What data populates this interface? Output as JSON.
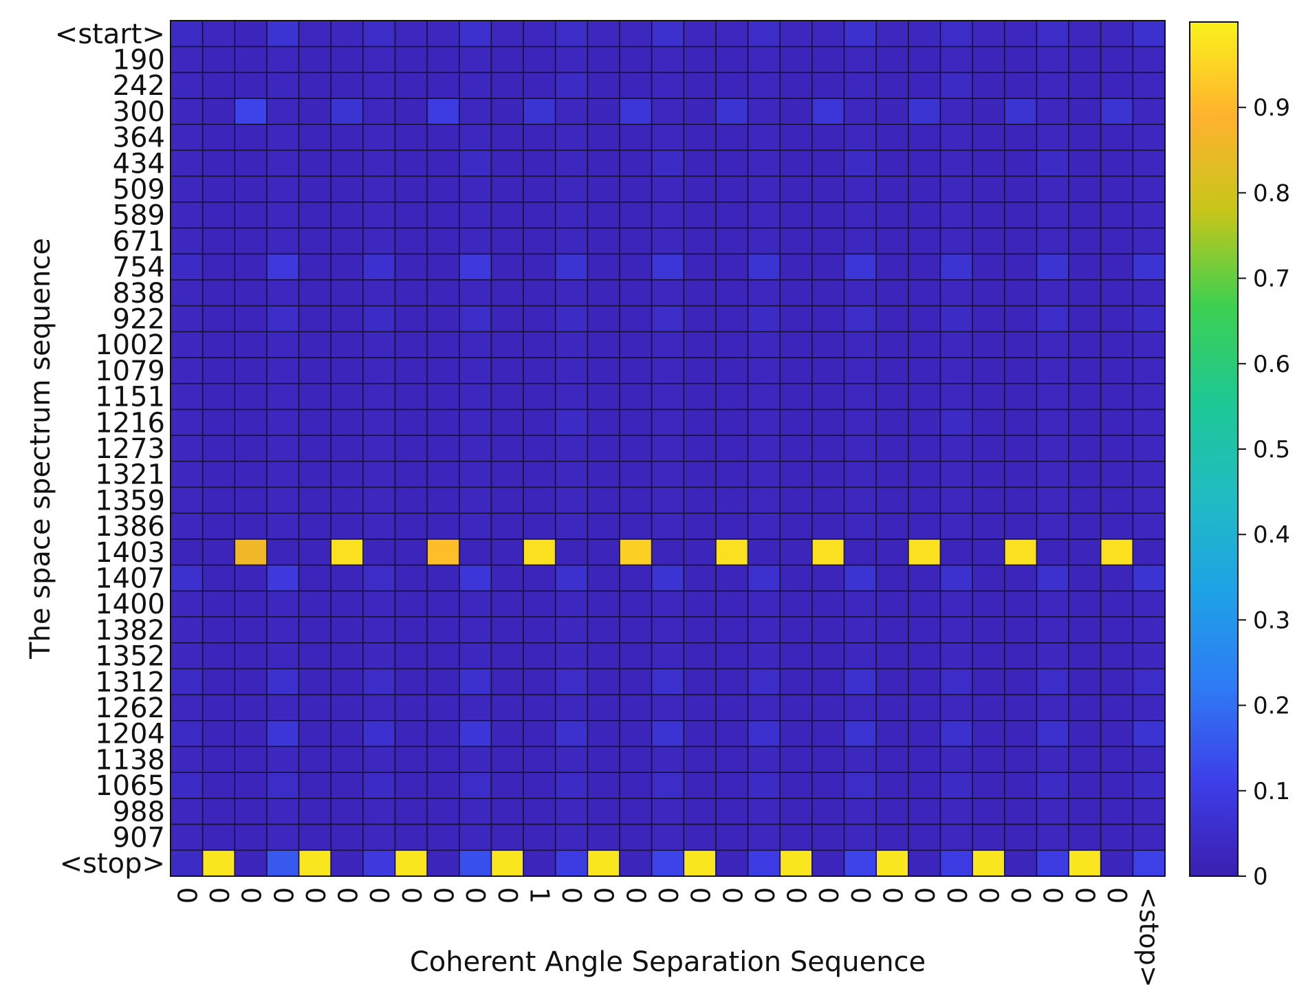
{
  "chart_data": {
    "type": "heatmap",
    "title": "",
    "xlabel": "Coherent Angle Separation Sequence",
    "ylabel": "The space spectrum sequence",
    "x_tick_labels": [
      "0",
      "0",
      "0",
      "0",
      "0",
      "0",
      "0",
      "0",
      "0",
      "0",
      "0",
      "1",
      "0",
      "0",
      "0",
      "0",
      "0",
      "0",
      "0",
      "0",
      "0",
      "0",
      "0",
      "0",
      "0",
      "0",
      "0",
      "0",
      "0",
      "0",
      "<stop>"
    ],
    "y_tick_labels": [
      "<start>",
      "190",
      "242",
      "300",
      "364",
      "434",
      "509",
      "589",
      "671",
      "754",
      "838",
      "922",
      "1002",
      "1079",
      "1151",
      "1216",
      "1273",
      "1321",
      "1359",
      "1386",
      "1403",
      "1407",
      "1400",
      "1382",
      "1352",
      "1312",
      "1262",
      "1204",
      "1138",
      "1065",
      "988",
      "907",
      "<stop>"
    ],
    "colorbar": {
      "range": [
        0,
        1
      ],
      "ticks": [
        0,
        0.1,
        0.2,
        0.3,
        0.4,
        0.5,
        0.6,
        0.7,
        0.8,
        0.9
      ],
      "tick_labels": [
        "0",
        "0.1",
        "0.2",
        "0.3",
        "0.4",
        "0.5",
        "0.6",
        "0.7",
        "0.8",
        "0.9"
      ],
      "colormap": [
        "#3b1fb0",
        "#3d3fe8",
        "#2f7bf5",
        "#1ea2e6",
        "#20bcc3",
        "#1dc894",
        "#3cd051",
        "#c6c61a",
        "#ffb22e",
        "#f9f11b"
      ]
    },
    "values": [
      [
        0.04,
        0.03,
        0.02,
        0.07,
        0.03,
        0.03,
        0.05,
        0.03,
        0.03,
        0.06,
        0.03,
        0.03,
        0.05,
        0.03,
        0.03,
        0.06,
        0.03,
        0.03,
        0.05,
        0.03,
        0.03,
        0.06,
        0.03,
        0.03,
        0.05,
        0.03,
        0.03,
        0.05,
        0.03,
        0.03,
        0.06
      ],
      [
        0.03,
        0.02,
        0.02,
        0.03,
        0.02,
        0.02,
        0.03,
        0.02,
        0.02,
        0.03,
        0.02,
        0.02,
        0.03,
        0.02,
        0.02,
        0.03,
        0.02,
        0.02,
        0.03,
        0.02,
        0.02,
        0.03,
        0.02,
        0.02,
        0.03,
        0.02,
        0.02,
        0.03,
        0.02,
        0.02,
        0.03
      ],
      [
        0.03,
        0.02,
        0.02,
        0.03,
        0.02,
        0.02,
        0.03,
        0.02,
        0.02,
        0.03,
        0.02,
        0.02,
        0.04,
        0.02,
        0.02,
        0.03,
        0.02,
        0.02,
        0.03,
        0.02,
        0.02,
        0.03,
        0.02,
        0.02,
        0.04,
        0.02,
        0.02,
        0.03,
        0.02,
        0.02,
        0.03
      ],
      [
        0.03,
        0.02,
        0.12,
        0.03,
        0.02,
        0.07,
        0.03,
        0.02,
        0.1,
        0.03,
        0.02,
        0.07,
        0.03,
        0.02,
        0.08,
        0.03,
        0.02,
        0.07,
        0.03,
        0.02,
        0.08,
        0.03,
        0.02,
        0.07,
        0.03,
        0.02,
        0.07,
        0.03,
        0.02,
        0.07,
        0.03
      ],
      [
        0.03,
        0.02,
        0.02,
        0.03,
        0.02,
        0.02,
        0.03,
        0.02,
        0.02,
        0.03,
        0.02,
        0.02,
        0.03,
        0.02,
        0.02,
        0.03,
        0.02,
        0.02,
        0.03,
        0.02,
        0.02,
        0.03,
        0.02,
        0.02,
        0.03,
        0.02,
        0.02,
        0.03,
        0.02,
        0.02,
        0.03
      ],
      [
        0.03,
        0.02,
        0.02,
        0.03,
        0.02,
        0.02,
        0.03,
        0.02,
        0.02,
        0.04,
        0.02,
        0.02,
        0.03,
        0.02,
        0.02,
        0.04,
        0.02,
        0.02,
        0.03,
        0.02,
        0.02,
        0.04,
        0.02,
        0.02,
        0.03,
        0.02,
        0.02,
        0.04,
        0.02,
        0.02,
        0.03
      ],
      [
        0.03,
        0.02,
        0.02,
        0.03,
        0.02,
        0.02,
        0.03,
        0.02,
        0.02,
        0.03,
        0.02,
        0.02,
        0.03,
        0.02,
        0.02,
        0.03,
        0.02,
        0.02,
        0.03,
        0.02,
        0.02,
        0.03,
        0.02,
        0.02,
        0.03,
        0.02,
        0.02,
        0.03,
        0.02,
        0.02,
        0.03
      ],
      [
        0.03,
        0.02,
        0.02,
        0.03,
        0.02,
        0.02,
        0.03,
        0.02,
        0.02,
        0.03,
        0.02,
        0.02,
        0.03,
        0.02,
        0.02,
        0.03,
        0.02,
        0.02,
        0.03,
        0.02,
        0.02,
        0.03,
        0.02,
        0.02,
        0.03,
        0.02,
        0.02,
        0.03,
        0.02,
        0.02,
        0.03
      ],
      [
        0.03,
        0.02,
        0.02,
        0.03,
        0.02,
        0.02,
        0.03,
        0.02,
        0.02,
        0.03,
        0.02,
        0.02,
        0.03,
        0.02,
        0.02,
        0.03,
        0.02,
        0.02,
        0.03,
        0.02,
        0.02,
        0.03,
        0.02,
        0.02,
        0.03,
        0.02,
        0.02,
        0.03,
        0.02,
        0.02,
        0.03
      ],
      [
        0.04,
        0.02,
        0.02,
        0.09,
        0.02,
        0.02,
        0.06,
        0.02,
        0.02,
        0.09,
        0.02,
        0.02,
        0.07,
        0.02,
        0.02,
        0.08,
        0.02,
        0.02,
        0.07,
        0.02,
        0.02,
        0.08,
        0.02,
        0.02,
        0.07,
        0.02,
        0.02,
        0.07,
        0.02,
        0.02,
        0.07
      ],
      [
        0.03,
        0.02,
        0.02,
        0.03,
        0.02,
        0.02,
        0.03,
        0.02,
        0.02,
        0.03,
        0.02,
        0.02,
        0.03,
        0.02,
        0.02,
        0.03,
        0.02,
        0.02,
        0.03,
        0.02,
        0.02,
        0.03,
        0.02,
        0.02,
        0.03,
        0.02,
        0.02,
        0.03,
        0.02,
        0.02,
        0.03
      ],
      [
        0.03,
        0.02,
        0.02,
        0.05,
        0.02,
        0.02,
        0.04,
        0.02,
        0.02,
        0.05,
        0.02,
        0.02,
        0.04,
        0.02,
        0.02,
        0.05,
        0.02,
        0.02,
        0.04,
        0.02,
        0.02,
        0.05,
        0.02,
        0.02,
        0.04,
        0.02,
        0.02,
        0.05,
        0.02,
        0.02,
        0.04
      ],
      [
        0.03,
        0.02,
        0.02,
        0.03,
        0.02,
        0.02,
        0.03,
        0.02,
        0.02,
        0.03,
        0.02,
        0.02,
        0.03,
        0.02,
        0.02,
        0.03,
        0.02,
        0.02,
        0.03,
        0.02,
        0.02,
        0.03,
        0.02,
        0.02,
        0.03,
        0.02,
        0.02,
        0.03,
        0.02,
        0.02,
        0.03
      ],
      [
        0.03,
        0.02,
        0.02,
        0.03,
        0.02,
        0.02,
        0.03,
        0.02,
        0.02,
        0.03,
        0.02,
        0.02,
        0.03,
        0.02,
        0.02,
        0.03,
        0.02,
        0.02,
        0.03,
        0.02,
        0.02,
        0.03,
        0.02,
        0.02,
        0.03,
        0.02,
        0.02,
        0.03,
        0.02,
        0.02,
        0.03
      ],
      [
        0.03,
        0.02,
        0.02,
        0.03,
        0.02,
        0.02,
        0.03,
        0.02,
        0.02,
        0.03,
        0.02,
        0.02,
        0.03,
        0.02,
        0.02,
        0.03,
        0.02,
        0.02,
        0.03,
        0.02,
        0.02,
        0.03,
        0.02,
        0.02,
        0.03,
        0.02,
        0.02,
        0.03,
        0.02,
        0.02,
        0.03
      ],
      [
        0.03,
        0.02,
        0.02,
        0.03,
        0.02,
        0.02,
        0.03,
        0.02,
        0.02,
        0.03,
        0.02,
        0.02,
        0.04,
        0.02,
        0.02,
        0.03,
        0.02,
        0.02,
        0.03,
        0.02,
        0.02,
        0.03,
        0.02,
        0.02,
        0.04,
        0.02,
        0.02,
        0.03,
        0.02,
        0.02,
        0.03
      ],
      [
        0.03,
        0.02,
        0.02,
        0.03,
        0.02,
        0.02,
        0.03,
        0.02,
        0.02,
        0.03,
        0.02,
        0.02,
        0.03,
        0.02,
        0.02,
        0.03,
        0.02,
        0.02,
        0.03,
        0.02,
        0.02,
        0.03,
        0.02,
        0.02,
        0.03,
        0.02,
        0.02,
        0.03,
        0.02,
        0.02,
        0.03
      ],
      [
        0.03,
        0.02,
        0.02,
        0.03,
        0.02,
        0.02,
        0.03,
        0.02,
        0.02,
        0.03,
        0.02,
        0.02,
        0.03,
        0.02,
        0.02,
        0.03,
        0.02,
        0.02,
        0.03,
        0.02,
        0.02,
        0.03,
        0.02,
        0.02,
        0.03,
        0.02,
        0.02,
        0.03,
        0.02,
        0.02,
        0.03
      ],
      [
        0.03,
        0.02,
        0.02,
        0.03,
        0.02,
        0.02,
        0.03,
        0.02,
        0.02,
        0.03,
        0.02,
        0.02,
        0.03,
        0.02,
        0.02,
        0.03,
        0.02,
        0.02,
        0.03,
        0.02,
        0.02,
        0.03,
        0.02,
        0.02,
        0.03,
        0.02,
        0.02,
        0.03,
        0.02,
        0.02,
        0.03
      ],
      [
        0.03,
        0.02,
        0.02,
        0.03,
        0.02,
        0.02,
        0.03,
        0.02,
        0.02,
        0.03,
        0.02,
        0.02,
        0.03,
        0.02,
        0.02,
        0.03,
        0.02,
        0.02,
        0.03,
        0.02,
        0.02,
        0.03,
        0.02,
        0.02,
        0.03,
        0.02,
        0.02,
        0.03,
        0.02,
        0.02,
        0.03
      ],
      [
        0.02,
        0.02,
        0.86,
        0.02,
        0.02,
        0.97,
        0.02,
        0.02,
        0.91,
        0.02,
        0.02,
        0.97,
        0.02,
        0.02,
        0.94,
        0.02,
        0.02,
        0.97,
        0.02,
        0.02,
        0.97,
        0.02,
        0.02,
        0.97,
        0.02,
        0.02,
        0.97,
        0.02,
        0.02,
        0.97,
        0.02
      ],
      [
        0.06,
        0.02,
        0.02,
        0.09,
        0.02,
        0.02,
        0.05,
        0.02,
        0.02,
        0.08,
        0.02,
        0.02,
        0.06,
        0.02,
        0.02,
        0.07,
        0.02,
        0.02,
        0.06,
        0.02,
        0.02,
        0.07,
        0.02,
        0.02,
        0.06,
        0.02,
        0.02,
        0.06,
        0.02,
        0.02,
        0.07
      ],
      [
        0.03,
        0.02,
        0.02,
        0.03,
        0.02,
        0.02,
        0.03,
        0.02,
        0.02,
        0.03,
        0.02,
        0.02,
        0.03,
        0.02,
        0.02,
        0.03,
        0.02,
        0.02,
        0.03,
        0.02,
        0.02,
        0.03,
        0.02,
        0.02,
        0.03,
        0.02,
        0.02,
        0.03,
        0.02,
        0.02,
        0.03
      ],
      [
        0.03,
        0.02,
        0.02,
        0.03,
        0.02,
        0.02,
        0.03,
        0.02,
        0.02,
        0.03,
        0.02,
        0.02,
        0.03,
        0.02,
        0.02,
        0.03,
        0.02,
        0.02,
        0.03,
        0.02,
        0.02,
        0.03,
        0.02,
        0.02,
        0.03,
        0.02,
        0.02,
        0.03,
        0.02,
        0.02,
        0.03
      ],
      [
        0.03,
        0.02,
        0.02,
        0.03,
        0.02,
        0.02,
        0.03,
        0.02,
        0.02,
        0.03,
        0.02,
        0.02,
        0.03,
        0.02,
        0.02,
        0.03,
        0.02,
        0.02,
        0.03,
        0.02,
        0.02,
        0.03,
        0.02,
        0.02,
        0.03,
        0.02,
        0.02,
        0.03,
        0.02,
        0.02,
        0.03
      ],
      [
        0.04,
        0.02,
        0.02,
        0.06,
        0.02,
        0.02,
        0.05,
        0.02,
        0.02,
        0.06,
        0.02,
        0.02,
        0.05,
        0.02,
        0.02,
        0.06,
        0.02,
        0.02,
        0.05,
        0.02,
        0.02,
        0.06,
        0.02,
        0.02,
        0.05,
        0.02,
        0.02,
        0.05,
        0.02,
        0.02,
        0.05
      ],
      [
        0.03,
        0.02,
        0.02,
        0.03,
        0.02,
        0.02,
        0.03,
        0.02,
        0.02,
        0.03,
        0.02,
        0.02,
        0.03,
        0.02,
        0.02,
        0.03,
        0.02,
        0.02,
        0.03,
        0.02,
        0.02,
        0.03,
        0.02,
        0.02,
        0.03,
        0.02,
        0.02,
        0.03,
        0.02,
        0.02,
        0.03
      ],
      [
        0.04,
        0.02,
        0.02,
        0.08,
        0.02,
        0.02,
        0.06,
        0.02,
        0.02,
        0.08,
        0.02,
        0.02,
        0.06,
        0.02,
        0.02,
        0.07,
        0.02,
        0.02,
        0.06,
        0.02,
        0.02,
        0.07,
        0.02,
        0.02,
        0.06,
        0.02,
        0.02,
        0.06,
        0.02,
        0.02,
        0.07
      ],
      [
        0.03,
        0.02,
        0.02,
        0.03,
        0.02,
        0.02,
        0.03,
        0.02,
        0.02,
        0.03,
        0.02,
        0.02,
        0.03,
        0.02,
        0.02,
        0.03,
        0.02,
        0.02,
        0.03,
        0.02,
        0.02,
        0.03,
        0.02,
        0.02,
        0.03,
        0.02,
        0.02,
        0.03,
        0.02,
        0.02,
        0.03
      ],
      [
        0.04,
        0.02,
        0.02,
        0.05,
        0.02,
        0.02,
        0.04,
        0.02,
        0.02,
        0.05,
        0.02,
        0.02,
        0.04,
        0.02,
        0.02,
        0.05,
        0.02,
        0.02,
        0.04,
        0.02,
        0.02,
        0.05,
        0.02,
        0.02,
        0.04,
        0.02,
        0.02,
        0.04,
        0.02,
        0.02,
        0.04
      ],
      [
        0.03,
        0.02,
        0.02,
        0.03,
        0.02,
        0.02,
        0.03,
        0.02,
        0.02,
        0.03,
        0.02,
        0.02,
        0.03,
        0.02,
        0.02,
        0.03,
        0.02,
        0.02,
        0.03,
        0.02,
        0.02,
        0.03,
        0.02,
        0.02,
        0.03,
        0.02,
        0.02,
        0.03,
        0.02,
        0.02,
        0.03
      ],
      [
        0.03,
        0.02,
        0.02,
        0.03,
        0.02,
        0.02,
        0.03,
        0.02,
        0.02,
        0.03,
        0.02,
        0.02,
        0.03,
        0.02,
        0.02,
        0.03,
        0.02,
        0.02,
        0.03,
        0.02,
        0.02,
        0.03,
        0.02,
        0.02,
        0.03,
        0.02,
        0.02,
        0.03,
        0.02,
        0.02,
        0.03
      ],
      [
        0.04,
        0.98,
        0.02,
        0.16,
        0.98,
        0.02,
        0.09,
        0.98,
        0.02,
        0.14,
        0.98,
        0.02,
        0.1,
        0.98,
        0.02,
        0.12,
        0.98,
        0.02,
        0.1,
        0.98,
        0.02,
        0.12,
        0.98,
        0.02,
        0.1,
        0.98,
        0.02,
        0.1,
        0.98,
        0.02,
        0.11
      ]
    ]
  }
}
